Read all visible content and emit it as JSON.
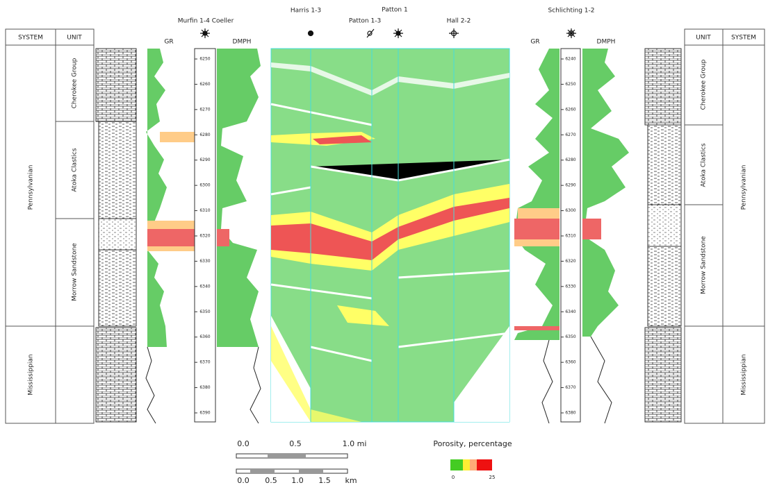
{
  "left_table": {
    "headers": [
      "SYSTEM",
      "UNIT"
    ],
    "systems": [
      "Pennsylvanian",
      "Mississippian"
    ],
    "units": [
      "Cherokee Group",
      "Atoka Clastics",
      "Morrow Sandstone"
    ]
  },
  "right_table": {
    "headers": [
      "UNIT",
      "SYSTEM"
    ],
    "systems": [
      "Pennsylvanian",
      "Mississippian"
    ],
    "units": [
      "Cherokee Group",
      "Atoka Clastics",
      "Morrow Sandstone"
    ]
  },
  "wells": [
    "Murfin 1-4 Coeller",
    "Harris 1-3",
    "Patton 1-3",
    "Patton 1",
    "Hall 2-2",
    "Schlichting 1-2"
  ],
  "left_log": {
    "curves": [
      "GR",
      "DMPH"
    ],
    "depths": [
      "6250",
      "6260",
      "6270",
      "6280",
      "6290",
      "6300",
      "6310",
      "6320",
      "6330",
      "6340",
      "6350",
      "6360",
      "6370",
      "6380",
      "6390"
    ]
  },
  "right_log": {
    "curves": [
      "GR",
      "DMPH"
    ],
    "depths": [
      "6240",
      "6250",
      "6260",
      "6270",
      "6280",
      "6290",
      "6300",
      "6310",
      "6320",
      "6330",
      "6340",
      "6350",
      "6360",
      "6370",
      "6380"
    ]
  },
  "scale": {
    "miles": [
      "0.0",
      "0.5",
      "1.0 mi"
    ],
    "km": [
      "0.0",
      "0.5",
      "1.0",
      "1.5",
      "km"
    ]
  },
  "legend": {
    "title": "Porosity, percentage",
    "min": "0",
    "max": "25"
  }
}
